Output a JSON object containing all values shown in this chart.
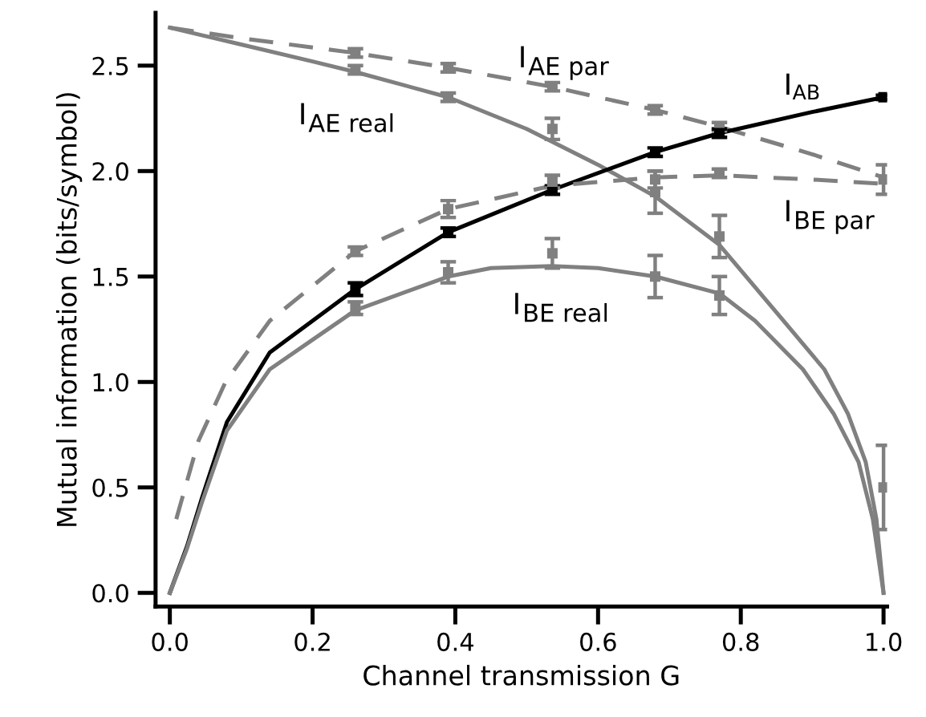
{
  "chart_data": {
    "type": "line",
    "xlabel": "Channel transmission G",
    "ylabel": "Mutual information (bits/symbol)",
    "xlim": [
      -0.02,
      1.005
    ],
    "ylim": [
      -0.065,
      2.75
    ],
    "xticks": [
      {
        "value": 0,
        "label": "0.0"
      },
      0.2,
      0.4,
      0.6,
      0.8,
      {
        "value": 1,
        "label": "1.0"
      }
    ],
    "yticks": [
      {
        "value": 0,
        "label": "0.0"
      },
      0.5,
      {
        "value": 1,
        "label": "1.0"
      },
      1.5,
      {
        "value": 2,
        "label": "2.0"
      },
      2.5
    ],
    "grid": false,
    "series": [
      {
        "name": "I$_{AE real}$",
        "line_style": "solid",
        "color": "#808080",
        "x": [
          0,
          0.1,
          0.2,
          0.26,
          0.39,
          0.5,
          0.6,
          0.68,
          0.77,
          0.86,
          0.917,
          0.95,
          0.975,
          0.99,
          1.0
        ],
        "values": [
          2.68,
          2.6,
          2.52,
          2.47,
          2.35,
          2.2,
          2.03,
          1.88,
          1.65,
          1.29,
          1.06,
          0.85,
          0.62,
          0.35,
          0
        ]
      },
      {
        "name": "I$_{AE par}$",
        "line_style": "dashed",
        "color": "#808080",
        "x": [
          0,
          0.1,
          0.26,
          0.39,
          0.535,
          0.68,
          0.77,
          0.9,
          1.0
        ],
        "values": [
          2.68,
          2.63,
          2.56,
          2.49,
          2.4,
          2.29,
          2.21,
          2.08,
          1.97
        ]
      },
      {
        "name": "I$_{AB}$",
        "line_style": "solid",
        "color": "#000000",
        "x": [
          0,
          0.024,
          0.045,
          0.08,
          0.14,
          0.2,
          0.26,
          0.39,
          0.535,
          0.68,
          0.77,
          0.9,
          1.0
        ],
        "values": [
          0,
          0.22,
          0.45,
          0.81,
          1.14,
          1.29,
          1.44,
          1.71,
          1.91,
          2.09,
          2.18,
          2.28,
          2.35
        ]
      },
      {
        "name": "I$_{BE par}$",
        "line_style": "dashed",
        "color": "#808080",
        "x": [
          0.009,
          0.04,
          0.078,
          0.14,
          0.26,
          0.39,
          0.535,
          0.68,
          0.77,
          0.9,
          1.0
        ],
        "values": [
          0.35,
          0.72,
          1.0,
          1.29,
          1.62,
          1.82,
          1.93,
          1.97,
          1.98,
          1.96,
          1.94
        ]
      },
      {
        "name": "I$_{BE real}$",
        "line_style": "solid",
        "color": "#808080",
        "x": [
          0,
          0.024,
          0.045,
          0.08,
          0.14,
          0.2,
          0.26,
          0.39,
          0.45,
          0.535,
          0.6,
          0.68,
          0.77,
          0.82,
          0.887,
          0.93,
          0.965,
          0.985,
          1.0
        ],
        "values": [
          0,
          0.21,
          0.43,
          0.77,
          1.06,
          1.2,
          1.34,
          1.5,
          1.54,
          1.55,
          1.54,
          1.5,
          1.42,
          1.29,
          1.06,
          0.85,
          0.62,
          0.35,
          0
        ]
      },
      {
        "type": "scatter",
        "color": "#808080",
        "x": [
          0.26,
          0.39,
          0.536,
          0.68,
          0.77
        ],
        "values": [
          2.48,
          2.35,
          2.2,
          1.9,
          1.69
        ],
        "errors": [
          0.02,
          0.02,
          0.05,
          0.1,
          0.1
        ]
      },
      {
        "type": "scatter",
        "color": "#808080",
        "x": [
          0.26,
          0.39,
          0.536,
          0.68,
          0.77
        ],
        "values": [
          2.56,
          2.49,
          2.4,
          2.29,
          2.21
        ],
        "errors": [
          0.02,
          0.02,
          0.02,
          0.02,
          0.02
        ]
      },
      {
        "type": "scatter",
        "color": "#000000",
        "x": [
          0.26,
          0.39,
          0.536,
          0.68,
          0.77,
          1.0
        ],
        "values": [
          1.44,
          1.71,
          1.91,
          2.09,
          2.18,
          2.35
        ],
        "errors": [
          0.03,
          0.02,
          0.02,
          0.02,
          0.02,
          0.01
        ]
      },
      {
        "type": "scatter",
        "color": "#808080",
        "x": [
          0.26,
          0.39,
          0.536,
          0.68,
          0.77,
          1.0
        ],
        "values": [
          1.62,
          1.82,
          1.95,
          1.96,
          1.99,
          1.96
        ],
        "errors": [
          0.02,
          0.04,
          0.03,
          0.04,
          0.02,
          0.07
        ]
      },
      {
        "type": "scatter",
        "color": "#808080",
        "x": [
          0.26,
          0.39,
          0.536,
          0.68,
          0.77,
          1.0
        ],
        "values": [
          1.35,
          1.52,
          1.61,
          1.5,
          1.41,
          0.5
        ],
        "errors": [
          0.03,
          0.05,
          0.07,
          0.1,
          0.09,
          0.2
        ]
      }
    ]
  }
}
